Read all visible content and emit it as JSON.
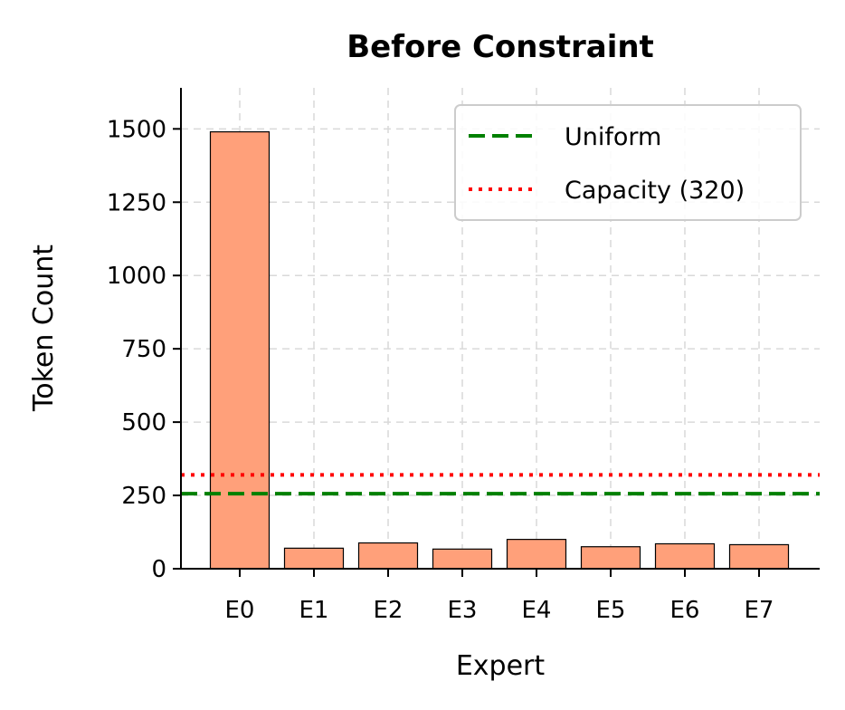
{
  "chart_data": {
    "type": "bar",
    "title": "Before Constraint",
    "xlabel": "Expert",
    "ylabel": "Token Count",
    "categories": [
      "E0",
      "E1",
      "E2",
      "E3",
      "E4",
      "E5",
      "E6",
      "E7"
    ],
    "values": [
      1490,
      70,
      88,
      67,
      100,
      75,
      85,
      82
    ],
    "ylim": [
      0,
      1640
    ],
    "yticks": [
      0,
      250,
      500,
      750,
      1000,
      1250,
      1500
    ],
    "bar_color": "#ffa07a",
    "bar_edge_color": "#000000",
    "grid": true,
    "legend_position": "top-right",
    "reference_lines": [
      {
        "label": "Uniform",
        "value": 256,
        "color": "#008000",
        "style": "dashed"
      },
      {
        "label": "Capacity (320)",
        "value": 320,
        "color": "#ff0000",
        "style": "dotted"
      }
    ]
  }
}
